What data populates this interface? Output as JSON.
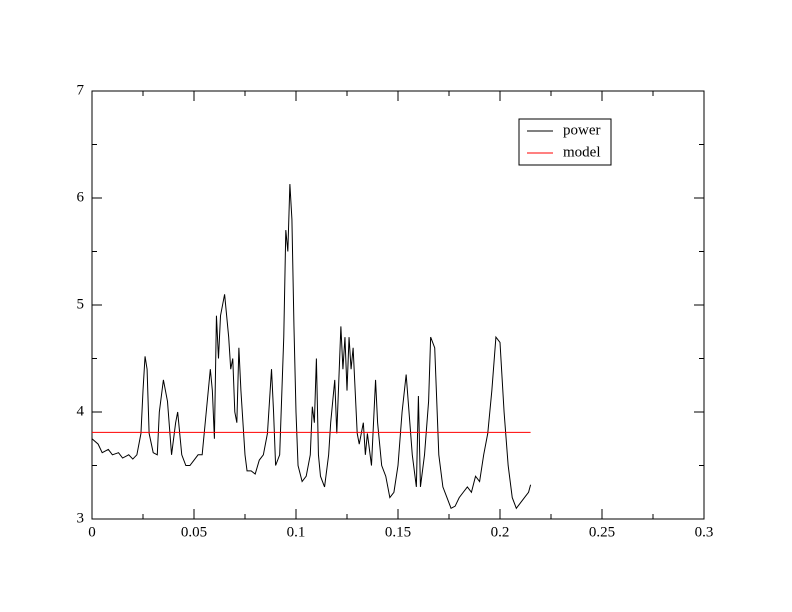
{
  "chart_data": {
    "type": "line",
    "series": [
      {
        "name": "power",
        "color": "#000000",
        "x": [
          0,
          0.003,
          0.005,
          0.008,
          0.01,
          0.013,
          0.015,
          0.018,
          0.02,
          0.022,
          0.024,
          0.025,
          0.026,
          0.027,
          0.028,
          0.03,
          0.032,
          0.033,
          0.035,
          0.037,
          0.039,
          0.041,
          0.042,
          0.044,
          0.046,
          0.048,
          0.05,
          0.052,
          0.054,
          0.056,
          0.058,
          0.059,
          0.06,
          0.061,
          0.062,
          0.063,
          0.065,
          0.067,
          0.068,
          0.069,
          0.07,
          0.071,
          0.072,
          0.073,
          0.075,
          0.076,
          0.078,
          0.08,
          0.082,
          0.084,
          0.086,
          0.088,
          0.089,
          0.09,
          0.092,
          0.094,
          0.095,
          0.096,
          0.097,
          0.098,
          0.099,
          0.1,
          0.101,
          0.103,
          0.105,
          0.107,
          0.108,
          0.109,
          0.11,
          0.111,
          0.112,
          0.114,
          0.116,
          0.117,
          0.119,
          0.12,
          0.122,
          0.123,
          0.124,
          0.125,
          0.126,
          0.127,
          0.128,
          0.13,
          0.131,
          0.133,
          0.134,
          0.135,
          0.137,
          0.139,
          0.14,
          0.142,
          0.144,
          0.146,
          0.148,
          0.15,
          0.152,
          0.154,
          0.155,
          0.157,
          0.159,
          0.16,
          0.161,
          0.163,
          0.165,
          0.166,
          0.168,
          0.17,
          0.172,
          0.174,
          0.176,
          0.178,
          0.18,
          0.182,
          0.184,
          0.186,
          0.188,
          0.19,
          0.192,
          0.194,
          0.196,
          0.198,
          0.2,
          0.202,
          0.204,
          0.206,
          0.208,
          0.21,
          0.212,
          0.214,
          0.215
        ],
        "values": [
          3.75,
          3.7,
          3.62,
          3.65,
          3.6,
          3.62,
          3.57,
          3.6,
          3.56,
          3.6,
          3.8,
          4.2,
          4.52,
          4.4,
          3.8,
          3.62,
          3.6,
          4.0,
          4.3,
          4.1,
          3.6,
          3.9,
          4.0,
          3.6,
          3.5,
          3.5,
          3.55,
          3.6,
          3.6,
          4.0,
          4.4,
          4.2,
          3.75,
          4.9,
          4.5,
          4.9,
          5.1,
          4.7,
          4.4,
          4.5,
          4.0,
          3.9,
          4.6,
          4.2,
          3.6,
          3.45,
          3.45,
          3.42,
          3.55,
          3.6,
          3.8,
          4.4,
          4.0,
          3.5,
          3.6,
          4.7,
          5.7,
          5.5,
          6.13,
          5.8,
          4.8,
          4.0,
          3.5,
          3.35,
          3.4,
          3.6,
          4.05,
          3.9,
          4.5,
          3.6,
          3.4,
          3.3,
          3.6,
          3.9,
          4.3,
          3.8,
          4.8,
          4.4,
          4.7,
          4.2,
          4.7,
          4.4,
          4.6,
          3.8,
          3.7,
          3.9,
          3.6,
          3.8,
          3.5,
          4.3,
          3.9,
          3.5,
          3.4,
          3.2,
          3.25,
          3.5,
          4.0,
          4.35,
          4.1,
          3.6,
          3.3,
          4.15,
          3.3,
          3.6,
          4.1,
          4.7,
          4.6,
          3.6,
          3.3,
          3.2,
          3.1,
          3.12,
          3.2,
          3.25,
          3.3,
          3.25,
          3.4,
          3.35,
          3.6,
          3.8,
          4.2,
          4.7,
          4.65,
          4.0,
          3.5,
          3.2,
          3.1,
          3.15,
          3.2,
          3.25,
          3.32
        ]
      },
      {
        "name": "model",
        "color": "#ff0000",
        "x": [
          0,
          0.215
        ],
        "values": [
          3.81,
          3.81
        ]
      }
    ],
    "xlim": [
      0,
      0.3
    ],
    "xticks": [
      0,
      0.05,
      0.1,
      0.15,
      0.2,
      0.25,
      0.3
    ],
    "xminorticks": [
      0.025,
      0.075,
      0.125,
      0.175,
      0.225,
      0.275
    ],
    "ylim": [
      3,
      7
    ],
    "yticks": [
      3,
      4,
      5,
      6,
      7
    ],
    "yminorticks": [
      3.5,
      4.5,
      5.5,
      6.5
    ],
    "legend": "upper right"
  }
}
